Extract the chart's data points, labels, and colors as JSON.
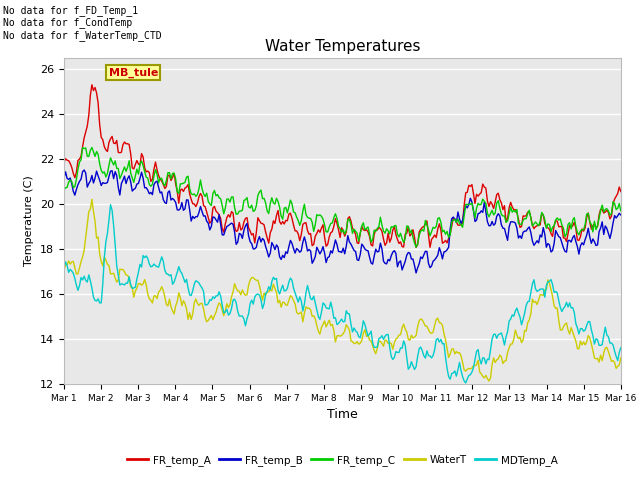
{
  "title": "Water Temperatures",
  "xlabel": "Time",
  "ylabel": "Temperature (C)",
  "ylim": [
    12,
    26.5
  ],
  "xlim": [
    0,
    15
  ],
  "annotations": [
    "No data for f_FD_Temp_1",
    "No data for f_CondTemp",
    "No data for f_WaterTemp_CTD"
  ],
  "mb_tule_label": "MB_tule",
  "legend_labels": [
    "FR_temp_A",
    "FR_temp_B",
    "FR_temp_C",
    "WaterT",
    "MDTemp_A"
  ],
  "legend_colors": [
    "#dd0000",
    "#0000cc",
    "#00cc00",
    "#cccc00",
    "#00cccc"
  ],
  "xtick_labels": [
    "Mar 1",
    "Mar 2",
    "Mar 3",
    "Mar 4",
    "Mar 5",
    "Mar 6",
    "Mar 7",
    "Mar 8",
    "Mar 9",
    "Mar 10",
    "Mar 11",
    "Mar 12",
    "Mar 13",
    "Mar 14",
    "Mar 15",
    "Mar 16"
  ],
  "ytick_labels": [
    12,
    14,
    16,
    18,
    20,
    22,
    24,
    26
  ],
  "plot_bg_color": "#e8e8e8",
  "fig_bg_color": "#ffffff",
  "gridcolor": "#ffffff",
  "linewidth": 1.0
}
